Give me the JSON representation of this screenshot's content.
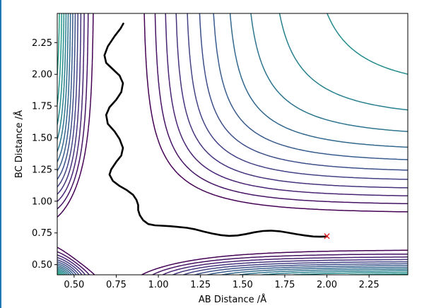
{
  "chart_data": {
    "type": "contour",
    "xlabel": "AB Distance /Å",
    "ylabel": "BC Distance /Å",
    "xlim": [
      0.4,
      2.48
    ],
    "ylim": [
      0.42,
      2.48
    ],
    "xticks": [
      0.5,
      0.75,
      1.0,
      1.25,
      1.5,
      1.75,
      2.0,
      2.25
    ],
    "xtick_labels": [
      "0.50",
      "0.75",
      "1.00",
      "1.25",
      "1.50",
      "1.75",
      "2.00",
      "2.25"
    ],
    "yticks": [
      0.5,
      0.75,
      1.0,
      1.25,
      1.5,
      1.75,
      2.0,
      2.25
    ],
    "ytick_labels": [
      "0.50",
      "0.75",
      "1.00",
      "1.25",
      "1.50",
      "1.75",
      "2.00",
      "2.25"
    ],
    "colormap": [
      "#440154",
      "#482475",
      "#414487",
      "#355f8d",
      "#2a788e",
      "#21918c",
      "#22a884",
      "#44bf70",
      "#7ad151",
      "#bddf26",
      "#fde725"
    ],
    "trajectory": [
      [
        0.792,
        2.4
      ],
      [
        0.775,
        2.36
      ],
      [
        0.74,
        2.3
      ],
      [
        0.7,
        2.22
      ],
      [
        0.68,
        2.15
      ],
      [
        0.69,
        2.09
      ],
      [
        0.73,
        2.04
      ],
      [
        0.77,
        1.99
      ],
      [
        0.79,
        1.93
      ],
      [
        0.78,
        1.86
      ],
      [
        0.75,
        1.8
      ],
      [
        0.71,
        1.74
      ],
      [
        0.69,
        1.68
      ],
      [
        0.7,
        1.61
      ],
      [
        0.74,
        1.55
      ],
      [
        0.77,
        1.49
      ],
      [
        0.79,
        1.42
      ],
      [
        0.78,
        1.36
      ],
      [
        0.75,
        1.31
      ],
      [
        0.72,
        1.25
      ],
      [
        0.71,
        1.21
      ],
      [
        0.73,
        1.16
      ],
      [
        0.77,
        1.12
      ],
      [
        0.81,
        1.09
      ],
      [
        0.85,
        1.05
      ],
      [
        0.87,
        1.01
      ],
      [
        0.88,
        0.97
      ],
      [
        0.88,
        0.93
      ],
      [
        0.89,
        0.89
      ],
      [
        0.91,
        0.85
      ],
      [
        0.94,
        0.82
      ],
      [
        0.98,
        0.81
      ],
      [
        1.02,
        0.807
      ],
      [
        1.07,
        0.803
      ],
      [
        1.12,
        0.797
      ],
      [
        1.17,
        0.79
      ],
      [
        1.22,
        0.778
      ],
      [
        1.27,
        0.76
      ],
      [
        1.32,
        0.745
      ],
      [
        1.37,
        0.733
      ],
      [
        1.42,
        0.727
      ],
      [
        1.47,
        0.73
      ],
      [
        1.52,
        0.741
      ],
      [
        1.57,
        0.755
      ],
      [
        1.62,
        0.765
      ],
      [
        1.67,
        0.768
      ],
      [
        1.72,
        0.763
      ],
      [
        1.77,
        0.752
      ],
      [
        1.82,
        0.74
      ],
      [
        1.87,
        0.73
      ],
      [
        1.92,
        0.722
      ],
      [
        1.96,
        0.72
      ],
      [
        2.0,
        0.722
      ]
    ],
    "marker": {
      "x": 2.0,
      "y": 0.725,
      "symbol": "x",
      "color": "#e31a1c"
    }
  }
}
